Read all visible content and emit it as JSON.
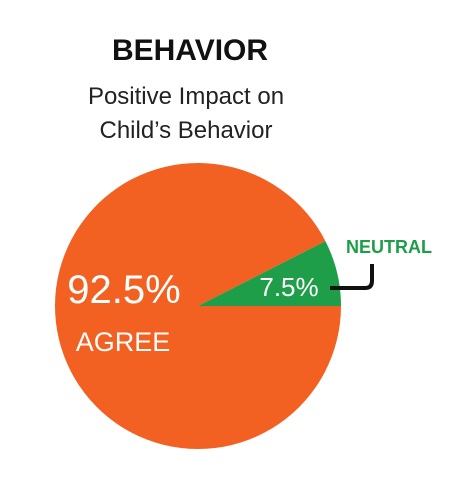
{
  "chart_data": {
    "type": "pie",
    "title": "BEHAVIOR",
    "subtitle": [
      "Positive Impact on",
      "Child’s Behavior"
    ],
    "slices": [
      {
        "label": "AGREE",
        "value": 92.5,
        "value_label": "92.5%",
        "color": "#F26122"
      },
      {
        "label": "NEUTRAL",
        "value": 7.5,
        "value_label": "7.5%",
        "color": "#1E9E48"
      }
    ],
    "neutral_label_color": "#1E9E48",
    "start_angle": "right (3 o'clock), sweeping counter-clockwise for NEUTRAL"
  }
}
